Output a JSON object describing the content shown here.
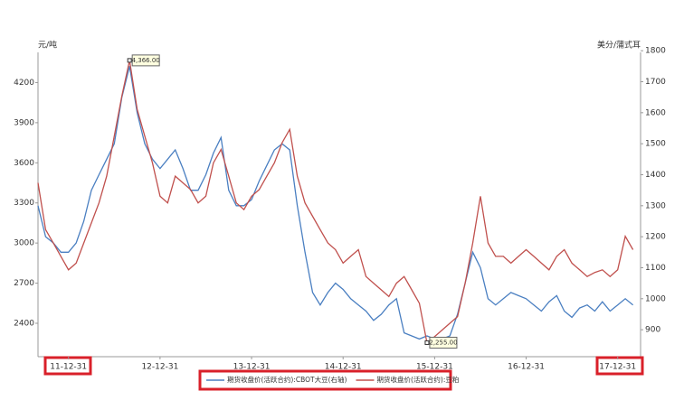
{
  "chart_data": {
    "type": "line",
    "y_label": "元/吨",
    "y2_label": "美分/蒲式耳",
    "x": [
      8,
      9,
      10,
      11,
      12,
      13,
      14,
      15,
      16,
      17,
      18,
      19,
      20,
      21,
      22,
      23,
      24,
      25,
      26,
      27,
      28,
      29,
      30,
      31,
      32,
      33,
      34,
      35,
      36,
      37,
      38,
      39,
      40,
      41,
      42,
      43,
      44,
      45,
      46,
      47,
      48,
      49,
      50,
      51,
      52,
      53,
      54,
      55,
      56,
      57,
      58,
      59,
      60,
      61,
      62,
      63,
      64,
      65,
      66,
      67,
      68,
      69,
      70,
      71,
      72,
      73,
      74,
      75,
      76,
      77,
      78,
      79,
      80,
      81,
      82,
      83,
      84,
      85,
      86
    ],
    "xlim": [
      8,
      87
    ],
    "xticks": [
      {
        "value": 12,
        "label": "11-12-31"
      },
      {
        "value": 24,
        "label": "12-12-31"
      },
      {
        "value": 36,
        "label": "13-12-31"
      },
      {
        "value": 48,
        "label": "14-12-31"
      },
      {
        "value": 60,
        "label": "15-12-31"
      },
      {
        "value": 72,
        "label": "16-12-31"
      },
      {
        "value": 84,
        "label": "17-12-31"
      }
    ],
    "ylim": [
      2150,
      4480
    ],
    "yticks": [
      2400,
      2700,
      3000,
      3300,
      3600,
      3900,
      4200
    ],
    "y2lim": [
      813,
      1818
    ],
    "y2ticks": [
      900,
      1000,
      1100,
      1200,
      1300,
      1400,
      1500,
      1600,
      1700,
      1800
    ],
    "series": [
      {
        "name": "期货收盘价(活跃合约):CBOT大豆(右轴)",
        "color": "#4a7fc1",
        "axis": "y2",
        "values": [
          1300,
          1200,
          1180,
          1150,
          1150,
          1180,
          1250,
          1350,
          1400,
          1450,
          1500,
          1650,
          1750,
          1600,
          1500,
          1450,
          1420,
          1450,
          1480,
          1420,
          1350,
          1350,
          1400,
          1470,
          1520,
          1350,
          1300,
          1300,
          1320,
          1380,
          1430,
          1480,
          1500,
          1480,
          1300,
          1150,
          1020,
          980,
          1020,
          1050,
          1030,
          1000,
          980,
          960,
          930,
          950,
          980,
          1000,
          890,
          880,
          870,
          880,
          870,
          870,
          880,
          950,
          1050,
          1150,
          1100,
          1000,
          980,
          1000,
          1020,
          1010,
          1000,
          980,
          960,
          990,
          1010,
          960,
          940,
          970,
          980,
          960,
          990,
          960,
          980,
          1000,
          980
        ]
      },
      {
        "name": "期货收盘价(活跃合约):豆粕",
        "color": "#c0504d",
        "values": [
          3450,
          3100,
          3000,
          2900,
          2800,
          2850,
          3000,
          3150,
          3300,
          3500,
          3800,
          4100,
          4366,
          4000,
          3800,
          3600,
          3350,
          3300,
          3500,
          3450,
          3400,
          3300,
          3350,
          3600,
          3700,
          3500,
          3300,
          3250,
          3350,
          3400,
          3500,
          3600,
          3750,
          3850,
          3500,
          3300,
          3200,
          3100,
          3000,
          2950,
          2850,
          2900,
          2950,
          2750,
          2700,
          2650,
          2600,
          2700,
          2750,
          2650,
          2550,
          2255,
          2300,
          2350,
          2400,
          2450,
          2700,
          3000,
          3350,
          3000,
          2900,
          2900,
          2850,
          2900,
          2950,
          2900,
          2850,
          2800,
          2900,
          2950,
          2850,
          2800,
          2750,
          2780,
          2800,
          2750,
          2800,
          3050,
          2950
        ]
      }
    ],
    "annotations": [
      {
        "text": "4,366.00",
        "x": 20,
        "y": 4366
      },
      {
        "text": "2,255.00",
        "x": 59,
        "y": 2255
      }
    ]
  }
}
